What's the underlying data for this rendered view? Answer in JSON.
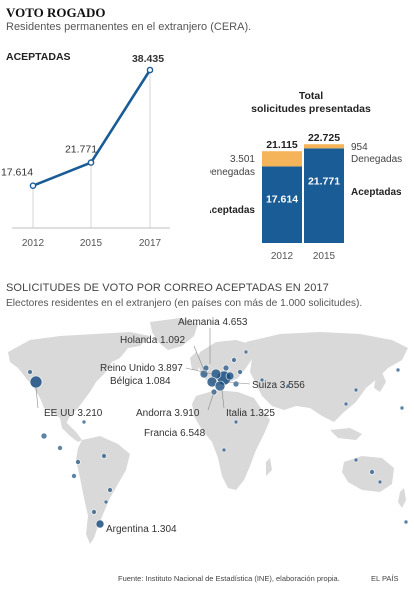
{
  "header": {
    "title": "VOTO ROGADO",
    "subtitle": "Residentes permanentes en el extranjero (CERA)."
  },
  "colors": {
    "primary": "#1a5c96",
    "accent": "#f5b45a",
    "map_land": "#d9d9d9",
    "dot": "#1a4f80"
  },
  "chart_data": [
    {
      "type": "line",
      "title": "ACEPTADAS",
      "x": [
        "2012",
        "2015",
        "2017"
      ],
      "values": [
        17614,
        21771,
        38435
      ],
      "labels": [
        "17.614",
        "21.771",
        "38.435"
      ]
    },
    {
      "type": "bar",
      "title_line1": "Total",
      "title_line2": "solicitudes presentadas",
      "categories": [
        "2012",
        "2015"
      ],
      "series": [
        {
          "name": "Aceptadas",
          "values": [
            17614,
            21771
          ],
          "labels": [
            "17.614",
            "21.771"
          ]
        },
        {
          "name": "Denegadas",
          "values": [
            3501,
            954
          ],
          "labels": [
            "3.501",
            "954"
          ]
        }
      ],
      "totals": [
        "21.115",
        "22.725"
      ],
      "left_labels": {
        "denegadas_value": "3.501",
        "denegadas": "Denegadas",
        "aceptadas": "Aceptadas"
      },
      "right_labels": {
        "denegadas_value": "954",
        "denegadas": "Denegadas",
        "aceptadas": "Aceptadas"
      }
    }
  ],
  "map": {
    "title": "SOLICITUDES DE VOTO POR CORREO ACEPTADAS EN 2017",
    "subtitle": "Electores residentes en el extranjero (en países con más de 1.000 solicitudes).",
    "labels": [
      {
        "text": "Alemania 4.653"
      },
      {
        "text": "Holanda 1.092"
      },
      {
        "text": "Reino Unido 3.897"
      },
      {
        "text": "Bélgica 1.084"
      },
      {
        "text": "Suiza 3.556"
      },
      {
        "text": "EE UU 3.210"
      },
      {
        "text": "Andorra 3.910"
      },
      {
        "text": "Italia 1.325"
      },
      {
        "text": "Francia 6.548"
      },
      {
        "text": "Argentina 1.304"
      }
    ]
  },
  "footer": {
    "source": "Fuente: Instituto Nacional de Estadística (INE), elaboración propia.",
    "brand": "EL PAÍS"
  }
}
